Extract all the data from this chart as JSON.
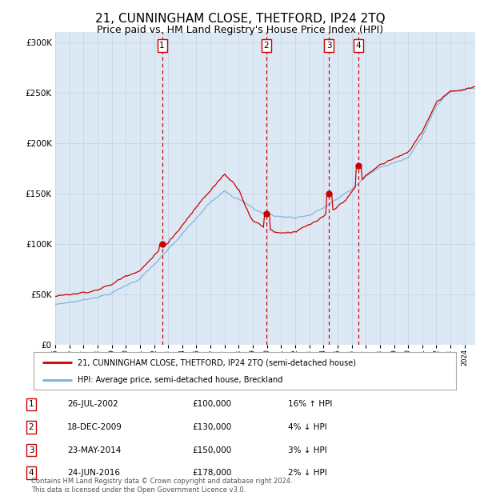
{
  "title": "21, CUNNINGHAM CLOSE, THETFORD, IP24 2TQ",
  "subtitle": "Price paid vs. HM Land Registry's House Price Index (HPI)",
  "title_fontsize": 11,
  "subtitle_fontsize": 9,
  "background_color": "#ffffff",
  "plot_bg_color": "#dce9f5",
  "grid_color": "#c8d8e8",
  "red_line_color": "#cc0000",
  "blue_line_color": "#7bafd4",
  "sale_dot_color": "#cc0000",
  "dashed_line_color": "#cc0000",
  "legend_label_red": "21, CUNNINGHAM CLOSE, THETFORD, IP24 2TQ (semi-detached house)",
  "legend_label_blue": "HPI: Average price, semi-detached house, Breckland",
  "footer": "Contains HM Land Registry data © Crown copyright and database right 2024.\nThis data is licensed under the Open Government Licence v3.0.",
  "sales": [
    {
      "num": 1,
      "date_label": "26-JUL-2002",
      "price": 100000,
      "pct": "16%",
      "dir": "↑",
      "x_year": 2002.57
    },
    {
      "num": 2,
      "date_label": "18-DEC-2009",
      "price": 130000,
      "pct": "4%",
      "dir": "↓",
      "x_year": 2009.96
    },
    {
      "num": 3,
      "date_label": "23-MAY-2014",
      "price": 150000,
      "pct": "3%",
      "dir": "↓",
      "x_year": 2014.39
    },
    {
      "num": 4,
      "date_label": "24-JUN-2016",
      "price": 178000,
      "pct": "2%",
      "dir": "↓",
      "x_year": 2016.48
    }
  ],
  "ylim": [
    0,
    310000
  ],
  "xlim_start": 1995.0,
  "xlim_end": 2024.75,
  "yticks": [
    0,
    50000,
    100000,
    150000,
    200000,
    250000,
    300000
  ]
}
